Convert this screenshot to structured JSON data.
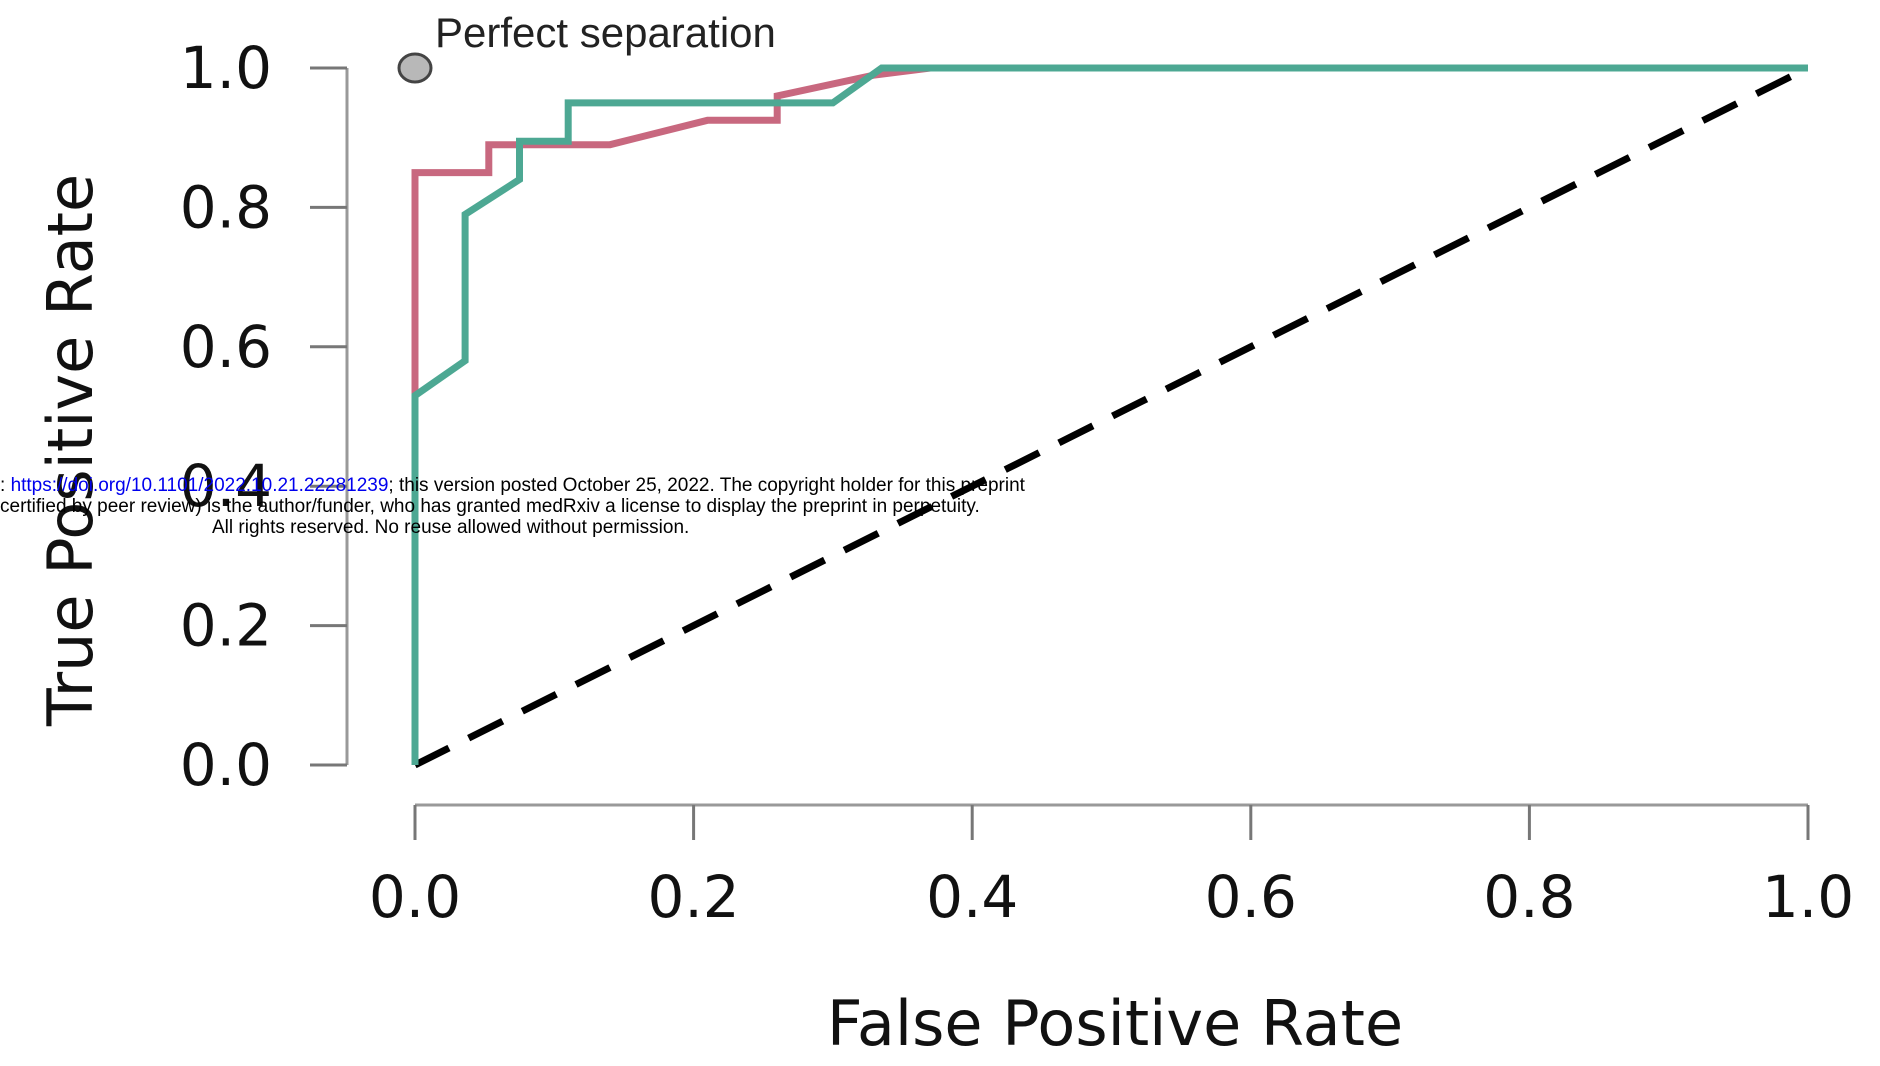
{
  "chart_data": {
    "type": "line",
    "title": "",
    "xlabel": "False Positive Rate",
    "ylabel": "True Positive Rate",
    "xlim": [
      0,
      1
    ],
    "ylim": [
      0,
      1
    ],
    "xticks": [
      "0.0",
      "0.2",
      "0.4",
      "0.6",
      "0.8",
      "1.0"
    ],
    "yticks": [
      "0.0",
      "0.2",
      "0.4",
      "0.6",
      "0.8",
      "1.0"
    ],
    "grid": false,
    "annotations": [
      {
        "text": "Perfect separation",
        "x": 0,
        "y": 1
      }
    ],
    "reference_line": {
      "x": [
        0,
        1
      ],
      "y": [
        0,
        1
      ],
      "style": "dashed",
      "color": "#000000"
    },
    "series": [
      {
        "color": "#c8687f",
        "x": [
          0,
          0,
          0,
          0.053,
          0.053,
          0.14,
          0.21,
          0.26,
          0.26,
          0.33,
          0.37,
          1
        ],
        "y": [
          0,
          0.53,
          0.85,
          0.85,
          0.89,
          0.89,
          0.925,
          0.925,
          0.96,
          0.99,
          1,
          1
        ]
      },
      {
        "color": "#4da893",
        "x": [
          0,
          0,
          0.036,
          0.036,
          0.075,
          0.075,
          0.11,
          0.11,
          0.3,
          0.335,
          1
        ],
        "y": [
          0,
          0.53,
          0.58,
          0.79,
          0.84,
          0.895,
          0.895,
          0.95,
          0.95,
          1,
          1
        ]
      }
    ]
  },
  "watermark": {
    "line1_prefix": ": ",
    "line1_link": "https://doi.org/10.1101/2022.10.21.22281239",
    "line1_suffix": "; this version posted October 25, 2022. The copyright holder for this preprint",
    "line2": "certified by peer review) is the author/funder, who has granted medRxiv a license to display the preprint in perpetuity.",
    "line3": "All rights reserved. No reuse allowed without permission."
  }
}
